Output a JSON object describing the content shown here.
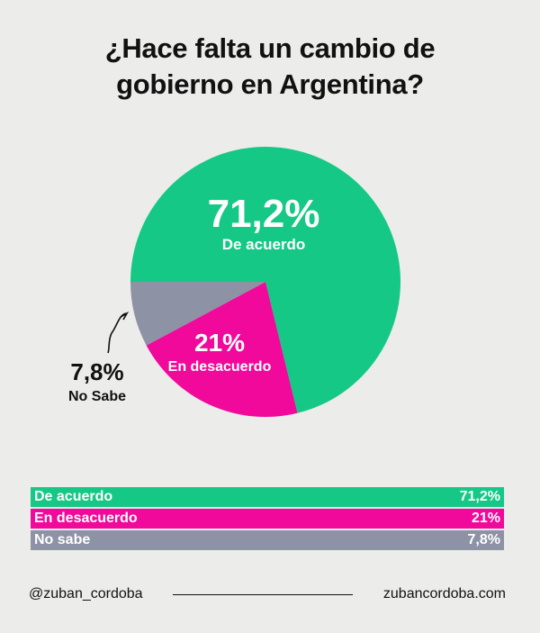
{
  "title_lines": [
    "¿Hace falta un cambio de",
    "gobierno en Argentina?"
  ],
  "colors": {
    "de_acuerdo": "#15c885",
    "en_desacuerdo": "#f0099a",
    "no_sabe": "#8e92a5",
    "background": "#ececea"
  },
  "chart_data": {
    "type": "pie",
    "title": "¿Hace falta un cambio de gobierno en Argentina?",
    "slices": [
      {
        "label": "De acuerdo",
        "value": 71.2,
        "display": "71,2%",
        "color": "#15c885"
      },
      {
        "label": "En desacuerdo",
        "value": 21,
        "display": "21%",
        "color": "#f0099a"
      },
      {
        "label": "No Sabe",
        "value": 7.8,
        "display": "7,8%",
        "color": "#8e92a5"
      }
    ]
  },
  "legend": [
    {
      "label": "De acuerdo",
      "value": "71,2%",
      "color": "#15c885"
    },
    {
      "label": "En desacuerdo",
      "value": "21%",
      "color": "#f0099a"
    },
    {
      "label": "No sabe",
      "value": "7,8%",
      "color": "#8e92a5"
    }
  ],
  "footer": {
    "handle": "@zuban_cordoba",
    "website": "zubancordoba.com"
  }
}
